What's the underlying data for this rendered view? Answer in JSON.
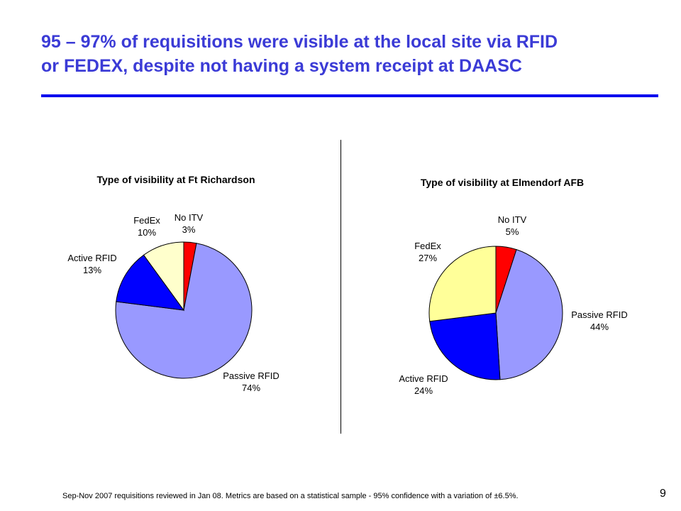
{
  "slide": {
    "title_line1": "95 – 97% of requisitions were visible at the local site via RFID",
    "title_line2": "or FEDEX, despite not having a system receipt at DAASC",
    "footnote": "Sep-Nov 2007 requisitions reviewed in Jan 08.  Metrics are based on a statistical sample - 95% confidence with a variation of ±6.5%.",
    "page_number": "9",
    "accent_color": "#0000ee",
    "title_color": "#3b3bd6"
  },
  "chart_data": [
    {
      "type": "pie",
      "title": "Type of visibility at Ft Richardson",
      "slices": [
        {
          "label": "No ITV",
          "value": 3,
          "display": "3%",
          "color": "#ff0000"
        },
        {
          "label": "Passive RFID",
          "value": 74,
          "display": "74%",
          "color": "#9999ff"
        },
        {
          "label": "Active RFID",
          "value": 13,
          "display": "13%",
          "color": "#0000ff"
        },
        {
          "label": "FedEx",
          "value": 10,
          "display": "10%",
          "color": "#ffffcc"
        }
      ]
    },
    {
      "type": "pie",
      "title": "Type of visibility at Elmendorf AFB",
      "slices": [
        {
          "label": "No ITV",
          "value": 5,
          "display": "5%",
          "color": "#ff0000"
        },
        {
          "label": "Passive RFID",
          "value": 44,
          "display": "44%",
          "color": "#9999ff"
        },
        {
          "label": "Active RFID",
          "value": 24,
          "display": "24%",
          "color": "#0000ff"
        },
        {
          "label": "FedEx",
          "value": 27,
          "display": "27%",
          "color": "#ffff99"
        }
      ]
    }
  ]
}
